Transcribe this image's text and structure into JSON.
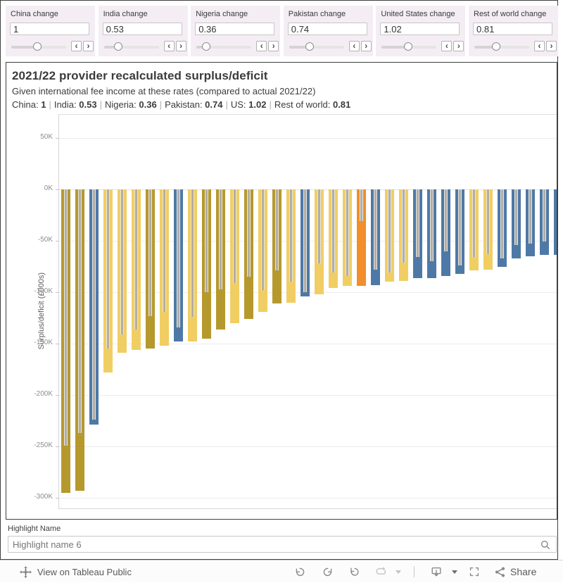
{
  "controls": [
    {
      "label": "China change",
      "value": "1",
      "slider_percent": 47
    },
    {
      "label": "India change",
      "value": "0.53",
      "slider_percent": 26
    },
    {
      "label": "Nigeria change",
      "value": "0.36",
      "slider_percent": 18
    },
    {
      "label": "Pakistan change",
      "value": "0.74",
      "slider_percent": 37
    },
    {
      "label": "United States change",
      "value": "1.02",
      "slider_percent": 48
    },
    {
      "label": "Rest of world change",
      "value": "0.81",
      "slider_percent": 40
    }
  ],
  "chart": {
    "title": "2021/22 provider recalculated surplus/deficit",
    "subtitle": "Given international fee income at these rates (compared to actual 2021/22)",
    "params": [
      {
        "name": "China",
        "value": "1"
      },
      {
        "name": "India",
        "value": "0.53"
      },
      {
        "name": "Nigeria",
        "value": "0.36"
      },
      {
        "name": "Pakistan",
        "value": "0.74"
      },
      {
        "name": "US",
        "value": "1.02"
      },
      {
        "name": "Rest of world",
        "value": "0.81"
      }
    ],
    "param_separator": "|"
  },
  "chart_data": {
    "type": "bar",
    "title": "2021/22 provider recalculated surplus/deficit",
    "ylabel": "Surplus/deficit (£000s)",
    "y_unit": "K (thousands of £000s)",
    "ylim": [
      -311,
      68
    ],
    "grid": true,
    "yticks": [
      {
        "label": "50K",
        "value": 50
      },
      {
        "label": "0K",
        "value": 0
      },
      {
        "label": "-50K",
        "value": -50
      },
      {
        "label": "-100K",
        "value": -100
      },
      {
        "label": "-150K",
        "value": -150
      },
      {
        "label": "-200K",
        "value": -200
      },
      {
        "label": "-250K",
        "value": -250
      },
      {
        "label": "-300K",
        "value": -300
      }
    ],
    "note": "each bar = recalculated surplus/deficit; inner gray marker = actual 2021/22 value; x labels not shown",
    "bars": [
      {
        "recalculated": -295,
        "actual": -249,
        "color": "olive"
      },
      {
        "recalculated": -293,
        "actual": -237,
        "color": "olive"
      },
      {
        "recalculated": -229,
        "actual": -224,
        "color": "blue"
      },
      {
        "recalculated": -178,
        "actual": -155,
        "color": "light_yellow"
      },
      {
        "recalculated": -159,
        "actual": -141,
        "color": "light_yellow"
      },
      {
        "recalculated": -156,
        "actual": -136,
        "color": "light_yellow"
      },
      {
        "recalculated": -155,
        "actual": -123,
        "color": "olive"
      },
      {
        "recalculated": -152,
        "actual": -119,
        "color": "light_yellow"
      },
      {
        "recalculated": -148,
        "actual": -134,
        "color": "blue"
      },
      {
        "recalculated": -148,
        "actual": -124,
        "color": "light_yellow"
      },
      {
        "recalculated": -145,
        "actual": -100,
        "color": "olive"
      },
      {
        "recalculated": -136,
        "actual": -97,
        "color": "olive"
      },
      {
        "recalculated": -130,
        "actual": -91,
        "color": "light_yellow"
      },
      {
        "recalculated": -126,
        "actual": -85,
        "color": "olive"
      },
      {
        "recalculated": -119,
        "actual": -98,
        "color": "light_yellow"
      },
      {
        "recalculated": -111,
        "actual": -79,
        "color": "olive"
      },
      {
        "recalculated": -110,
        "actual": -90,
        "color": "light_yellow"
      },
      {
        "recalculated": -104,
        "actual": -100,
        "color": "blue"
      },
      {
        "recalculated": -102,
        "actual": -72,
        "color": "light_yellow"
      },
      {
        "recalculated": -96,
        "actual": -81,
        "color": "light_yellow"
      },
      {
        "recalculated": -94,
        "actual": -84,
        "color": "light_yellow"
      },
      {
        "recalculated": -94,
        "actual": -31,
        "color": "orange"
      },
      {
        "recalculated": -93,
        "actual": -78,
        "color": "blue"
      },
      {
        "recalculated": -90,
        "actual": -81,
        "color": "light_yellow"
      },
      {
        "recalculated": -89,
        "actual": -71,
        "color": "light_yellow"
      },
      {
        "recalculated": -86,
        "actual": -66,
        "color": "blue"
      },
      {
        "recalculated": -86,
        "actual": -70,
        "color": "blue"
      },
      {
        "recalculated": -84,
        "actual": -60,
        "color": "blue"
      },
      {
        "recalculated": -82,
        "actual": -74,
        "color": "blue"
      },
      {
        "recalculated": -79,
        "actual": -66,
        "color": "light_yellow"
      },
      {
        "recalculated": -78,
        "actual": -63,
        "color": "light_yellow"
      },
      {
        "recalculated": -75,
        "actual": -67,
        "color": "blue"
      },
      {
        "recalculated": -67,
        "actual": -54,
        "color": "blue"
      },
      {
        "recalculated": -65,
        "actual": -53,
        "color": "blue"
      },
      {
        "recalculated": -64,
        "actual": -51,
        "color": "blue"
      },
      {
        "recalculated": -64,
        "actual": -52,
        "color": "blue"
      }
    ]
  },
  "colors": {
    "olive": "#B6992D",
    "light_yellow": "#F1CE63",
    "blue": "#4E79A7",
    "orange": "#F28E2B",
    "marker_gray": "#B1AEA6",
    "control_bg": "#F4EEF4"
  },
  "highlight": {
    "label": "Highlight Name",
    "value": "Highlight name 6"
  },
  "footer": {
    "view_label": "View on Tableau Public",
    "share_label": "Share",
    "icons": [
      "tableau-logo",
      "undo",
      "redo",
      "reset",
      "replay-animation",
      "replay-caret",
      "download-device",
      "download-caret",
      "fullscreen",
      "share"
    ]
  }
}
